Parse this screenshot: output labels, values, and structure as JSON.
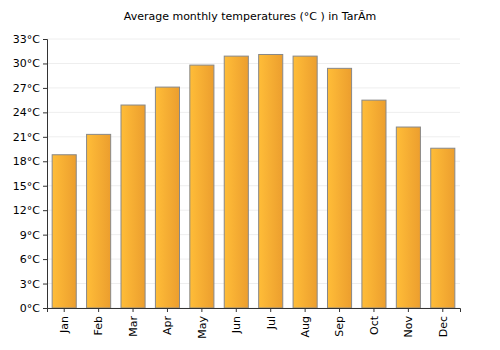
{
  "chart_data": {
    "type": "bar",
    "title": "Average monthly temperatures (°C ) in TarÃm",
    "categories": [
      "Jan",
      "Feb",
      "Mar",
      "Apr",
      "May",
      "Jun",
      "Jul",
      "Aug",
      "Sep",
      "Oct",
      "Nov",
      "Dec"
    ],
    "values": [
      18.8,
      21.3,
      24.9,
      27.1,
      29.8,
      30.9,
      31.1,
      30.9,
      29.4,
      25.5,
      22.2,
      19.6
    ],
    "color": "#f9a731",
    "ylim": [
      0,
      33
    ],
    "yticks": [
      {
        "value": 0,
        "label": "0°C"
      },
      {
        "value": 3,
        "label": "3°C"
      },
      {
        "value": 6,
        "label": "6°C"
      },
      {
        "value": 9,
        "label": "9°C"
      },
      {
        "value": 12,
        "label": "12°C"
      },
      {
        "value": 15,
        "label": "15°C"
      },
      {
        "value": 18,
        "label": "18°C"
      },
      {
        "value": 21,
        "label": "21°C"
      },
      {
        "value": 24,
        "label": "24°C"
      },
      {
        "value": 27,
        "label": "27°C"
      },
      {
        "value": 30,
        "label": "30°C"
      },
      {
        "value": 33,
        "label": "33°C"
      }
    ],
    "grid": true
  }
}
